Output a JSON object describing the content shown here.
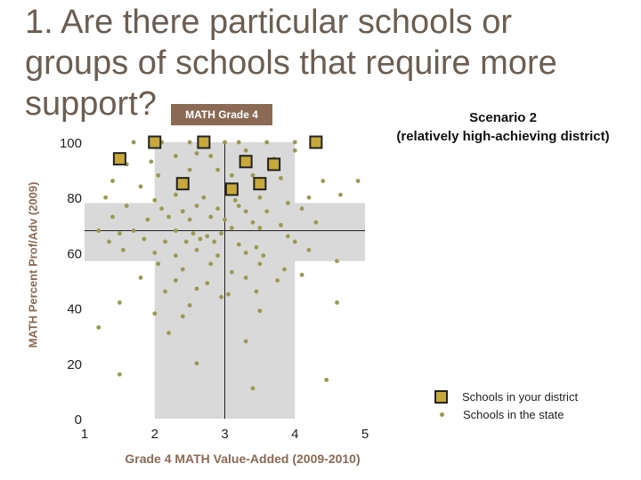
{
  "title": "1. Are there particular schools or groups of schools that require more support?",
  "tag": "MATH Grade 4",
  "scenario": {
    "line1": "Scenario 2",
    "line2": "(relatively high-achieving district)"
  },
  "legend": {
    "district": "Schools in your district",
    "state": "Schools in the state"
  },
  "colors": {
    "district_fill": "#c6a93a",
    "state_dot": "#9a9a50",
    "band": "#d9d9d9",
    "text_accent": "#8a6a55"
  },
  "chart_data": {
    "type": "scatter",
    "xlabel": "Grade 4 MATH Value-Added (2009-2010)",
    "ylabel": "MATH Percent Prof/Adv (2009)",
    "xlim": [
      1,
      5
    ],
    "ylim": [
      0,
      100
    ],
    "x_ticks": [
      "1",
      "2",
      "3",
      "4",
      "5"
    ],
    "y_ticks": [
      "0",
      "20",
      "40",
      "60",
      "80",
      "100"
    ],
    "reference_lines": {
      "x": 3,
      "y": 68
    },
    "shaded_bands": {
      "x_range": [
        2,
        4
      ],
      "y_range": [
        57,
        78
      ]
    },
    "series": [
      {
        "name": "Schools in your district",
        "points": [
          [
            1.5,
            94
          ],
          [
            2.0,
            100
          ],
          [
            2.7,
            100
          ],
          [
            3.3,
            93
          ],
          [
            3.7,
            92
          ],
          [
            4.3,
            100
          ],
          [
            2.4,
            85
          ],
          [
            3.1,
            83
          ],
          [
            3.5,
            85
          ]
        ]
      },
      {
        "name": "Schools in the state",
        "points": [
          [
            1.7,
            100
          ],
          [
            2.1,
            100
          ],
          [
            2.5,
            100
          ],
          [
            3.0,
            100
          ],
          [
            3.2,
            100
          ],
          [
            3.6,
            100
          ],
          [
            4.0,
            100
          ],
          [
            1.6,
            92
          ],
          [
            1.95,
            93
          ],
          [
            2.3,
            95
          ],
          [
            2.6,
            96
          ],
          [
            2.8,
            95
          ],
          [
            3.3,
            97
          ],
          [
            3.7,
            94
          ],
          [
            4.0,
            97
          ],
          [
            1.4,
            86
          ],
          [
            1.8,
            84
          ],
          [
            2.05,
            88
          ],
          [
            2.5,
            90
          ],
          [
            2.9,
            90
          ],
          [
            3.1,
            88
          ],
          [
            3.4,
            88
          ],
          [
            3.8,
            87
          ],
          [
            4.4,
            86
          ],
          [
            4.9,
            86
          ],
          [
            1.3,
            80
          ],
          [
            1.6,
            77
          ],
          [
            2.0,
            79
          ],
          [
            2.3,
            81
          ],
          [
            2.7,
            80
          ],
          [
            3.15,
            79
          ],
          [
            3.5,
            80
          ],
          [
            3.9,
            78
          ],
          [
            4.2,
            80
          ],
          [
            4.65,
            81
          ],
          [
            2.1,
            76
          ],
          [
            2.4,
            75
          ],
          [
            2.6,
            77
          ],
          [
            2.9,
            76
          ],
          [
            3.2,
            77
          ],
          [
            3.3,
            75
          ],
          [
            3.6,
            75
          ],
          [
            4.1,
            76
          ],
          [
            1.4,
            73
          ],
          [
            1.9,
            72
          ],
          [
            2.2,
            73
          ],
          [
            2.5,
            72
          ],
          [
            2.8,
            73
          ],
          [
            3.0,
            72
          ],
          [
            3.4,
            71
          ],
          [
            3.8,
            70
          ],
          [
            4.3,
            71
          ],
          [
            1.2,
            68
          ],
          [
            1.5,
            67
          ],
          [
            1.7,
            68
          ],
          [
            2.3,
            68
          ],
          [
            2.55,
            67
          ],
          [
            2.75,
            66
          ],
          [
            2.95,
            67
          ],
          [
            3.1,
            69
          ],
          [
            3.5,
            69
          ],
          [
            3.9,
            66
          ],
          [
            1.35,
            64
          ],
          [
            1.85,
            65
          ],
          [
            2.15,
            64
          ],
          [
            2.45,
            64
          ],
          [
            2.65,
            65
          ],
          [
            2.85,
            64
          ],
          [
            3.2,
            63
          ],
          [
            3.45,
            62
          ],
          [
            4.0,
            64
          ],
          [
            1.55,
            61
          ],
          [
            2.0,
            60
          ],
          [
            2.3,
            59
          ],
          [
            2.6,
            61
          ],
          [
            2.9,
            59
          ],
          [
            3.3,
            60
          ],
          [
            3.55,
            59
          ],
          [
            4.2,
            61
          ],
          [
            2.05,
            56
          ],
          [
            2.4,
            54
          ],
          [
            2.8,
            56
          ],
          [
            3.1,
            53
          ],
          [
            3.5,
            56
          ],
          [
            3.85,
            54
          ],
          [
            4.6,
            57
          ],
          [
            1.8,
            51
          ],
          [
            2.3,
            50
          ],
          [
            2.75,
            49
          ],
          [
            3.3,
            51
          ],
          [
            3.75,
            50
          ],
          [
            4.1,
            52
          ],
          [
            2.15,
            46
          ],
          [
            2.6,
            47
          ],
          [
            3.05,
            45
          ],
          [
            3.45,
            46
          ],
          [
            1.5,
            42
          ],
          [
            2.5,
            41
          ],
          [
            2.95,
            44
          ],
          [
            4.6,
            42
          ],
          [
            2.0,
            38
          ],
          [
            2.4,
            37
          ],
          [
            3.5,
            39
          ],
          [
            1.2,
            33
          ],
          [
            2.2,
            31
          ],
          [
            3.3,
            28
          ],
          [
            2.6,
            20
          ],
          [
            1.5,
            16
          ],
          [
            3.4,
            11
          ],
          [
            4.45,
            14
          ]
        ]
      }
    ]
  }
}
